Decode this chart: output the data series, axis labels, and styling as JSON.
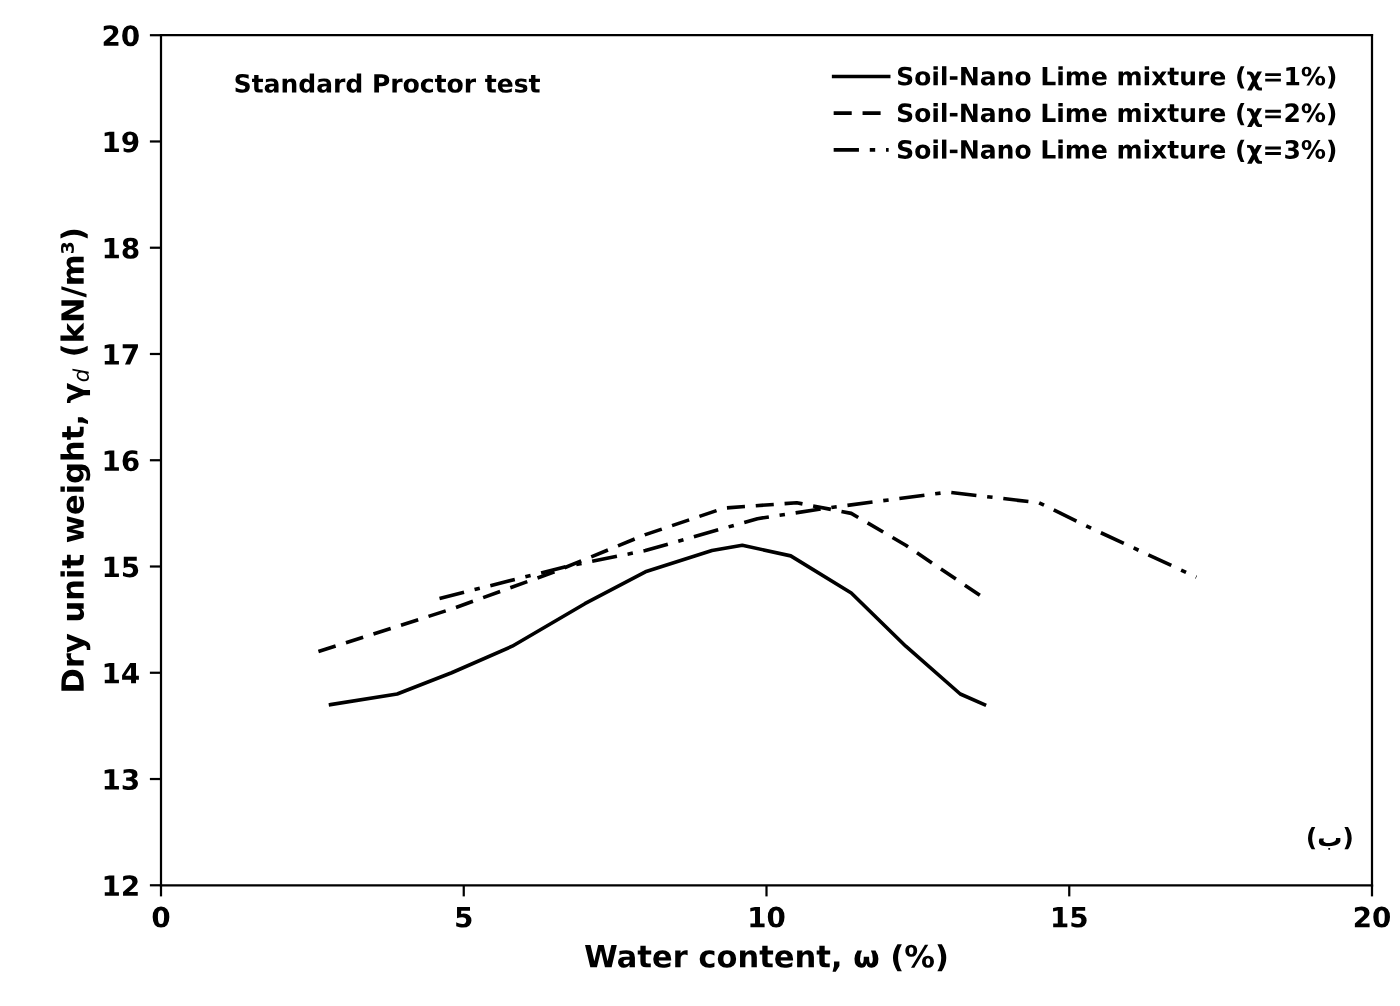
{
  "chart_data": {
    "type": "line",
    "xlabel": "Water content, ω (%)",
    "ylabel": "Dry unit weight, γ$_{d}$ (kN/m³)",
    "xlim": [
      0,
      20
    ],
    "ylim": [
      12,
      20
    ],
    "xticks": [
      0,
      5,
      10,
      15,
      20
    ],
    "yticks": [
      12,
      13,
      14,
      15,
      16,
      17,
      18,
      19,
      20
    ],
    "grid": false,
    "legend": "top right",
    "marker": "none",
    "annotations": [
      "Standard Proctor test",
      "(ب)"
    ],
    "series": [
      {
        "name": "Soil-Nano Lime mixture (χ=1%)",
        "color": "#000000",
        "line_style": "solid",
        "x": [
          2.8,
          3.9,
          4.8,
          5.8,
          7.0,
          8.0,
          9.1,
          9.6,
          10.4,
          11.4,
          12.3,
          13.2,
          13.6
        ],
        "values": [
          13.7,
          13.8,
          14.0,
          14.25,
          14.65,
          14.95,
          15.15,
          15.2,
          15.1,
          14.75,
          14.25,
          13.8,
          13.7
        ]
      },
      {
        "name": "Soil-Nano Lime mixture (χ=2%)",
        "color": "#000000",
        "line_style": "dashed",
        "x": [
          2.6,
          4.8,
          6.5,
          8.0,
          9.3,
          10.5,
          11.4,
          12.3,
          13.6
        ],
        "values": [
          14.2,
          14.6,
          14.95,
          15.3,
          15.55,
          15.6,
          15.5,
          15.2,
          14.7
        ]
      },
      {
        "name": "Soil-Nano Lime mixture (χ=3%)",
        "color": "#000000",
        "line_style": "dashdot",
        "x": [
          4.6,
          6.7,
          8.0,
          9.85,
          11.0,
          13.0,
          14.5,
          15.4,
          17.1
        ],
        "values": [
          14.7,
          15.0,
          15.15,
          15.45,
          15.55,
          15.7,
          15.6,
          15.35,
          14.9
        ]
      }
    ]
  }
}
